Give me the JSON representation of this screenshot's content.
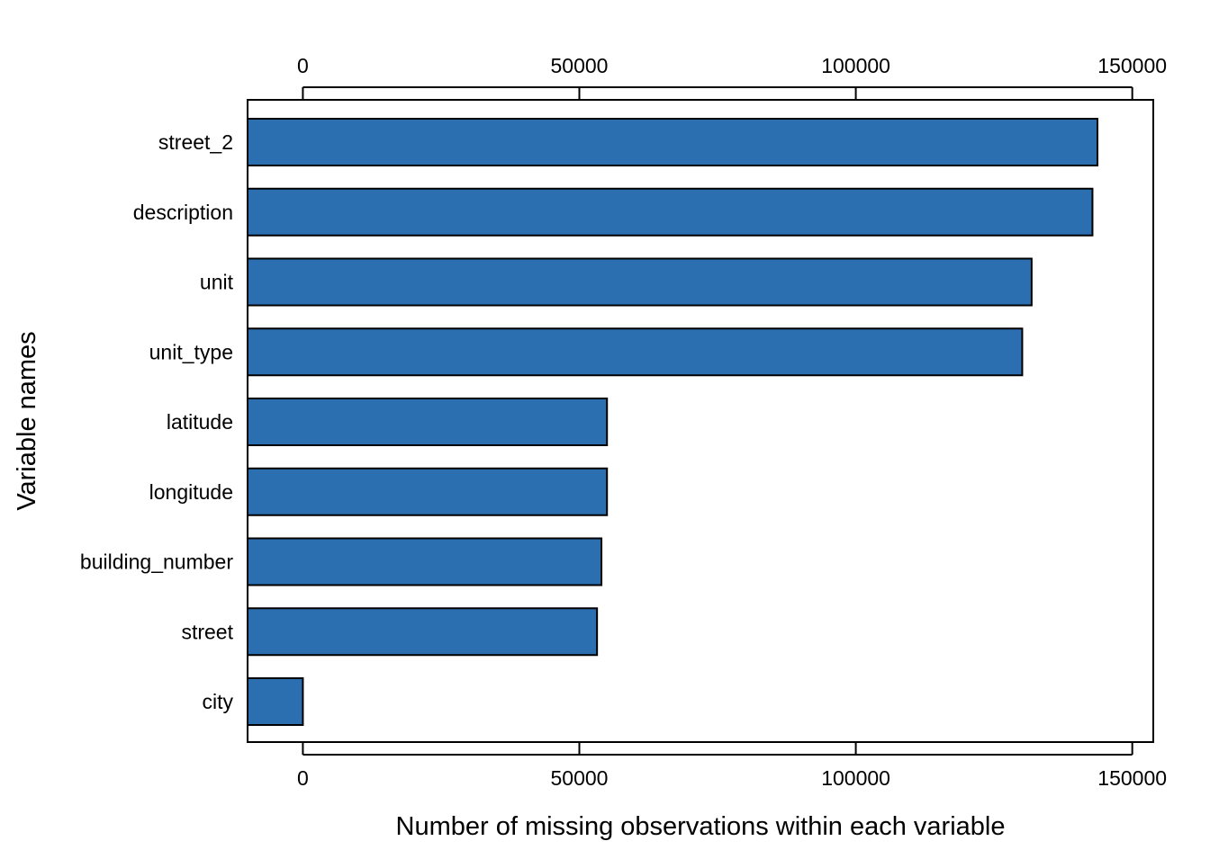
{
  "chart_data": {
    "type": "bar",
    "orientation": "horizontal",
    "categories": [
      "street_2",
      "description",
      "unit",
      "unit_type",
      "latitude",
      "longitude",
      "building_number",
      "street",
      "city"
    ],
    "values": [
      143700,
      142800,
      131800,
      130100,
      55000,
      55000,
      54000,
      53200,
      0
    ],
    "xlabel": "Number of missing observations within each variable",
    "ylabel": "Variable names",
    "xlim": [
      -10000,
      153800
    ],
    "xticks": [
      0,
      50000,
      100000,
      150000
    ],
    "xtick_labels": [
      "0",
      "50000",
      "100000",
      "150000"
    ],
    "axis_position": "top and bottom",
    "grid": false,
    "legend": "none",
    "colors": {
      "bar_fill": "#2b6fb1",
      "bar_stroke": "#000000",
      "frame": "#000000",
      "text": "#000000"
    }
  }
}
